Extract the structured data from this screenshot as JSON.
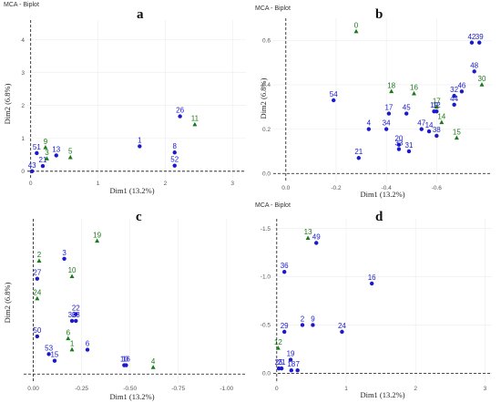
{
  "colors": {
    "blue": "#1a1acc",
    "green": "#1a7a1a"
  },
  "chart_data": [
    {
      "id": "a",
      "letter": "a",
      "type": "scatter",
      "title": "MCA - Biplot",
      "xlabel": "Dim1 (13.2%)",
      "ylabel": "Dim2 (6.8%)",
      "xlim": [
        -0.05,
        3.2
      ],
      "ylim": [
        -0.2,
        4.6
      ],
      "xticks": [
        {
          "v": 0,
          "t": "0"
        },
        {
          "v": 1,
          "t": "1"
        },
        {
          "v": 2,
          "t": "2"
        },
        {
          "v": 3,
          "t": "3"
        }
      ],
      "yticks": [
        {
          "v": 0,
          "t": "0"
        },
        {
          "v": 1,
          "t": "1"
        },
        {
          "v": 2,
          "t": "2"
        },
        {
          "v": 3,
          "t": "3"
        },
        {
          "v": 4,
          "t": "4"
        }
      ],
      "series": [
        {
          "color": "blue",
          "marker": "circle",
          "points": [
            {
              "x": 0.09,
              "y": 0.55,
              "label": "51"
            },
            {
              "x": 0.38,
              "y": 0.48,
              "label": "13"
            },
            {
              "x": 0.18,
              "y": 0.16,
              "label": "21"
            },
            {
              "x": 0.02,
              "y": 0.0,
              "label": "43"
            },
            {
              "x": 1.62,
              "y": 0.76,
              "label": "1"
            },
            {
              "x": 2.14,
              "y": 0.57,
              "label": "8"
            },
            {
              "x": 2.14,
              "y": 0.17,
              "label": "52"
            },
            {
              "x": 2.22,
              "y": 1.67,
              "label": "26"
            }
          ]
        },
        {
          "color": "green",
          "marker": "triangle",
          "points": [
            {
              "x": 0.22,
              "y": 0.72,
              "label": "9"
            },
            {
              "x": 0.24,
              "y": 0.38,
              "label": "3"
            },
            {
              "x": 0.59,
              "y": 0.42,
              "label": "5"
            },
            {
              "x": 2.44,
              "y": 1.42,
              "label": "11"
            }
          ]
        }
      ]
    },
    {
      "id": "b",
      "letter": "b",
      "type": "scatter",
      "title": "MCA - Biplot",
      "xlabel": "Dim1 (13.2%)",
      "ylabel": "Dim2 (6.8%)",
      "xlim": [
        0.05,
        -0.82
      ],
      "ylim": [
        -0.04,
        0.7
      ],
      "xticks": [
        {
          "v": 0,
          "t": "0.0"
        },
        {
          "v": -0.2,
          "t": "-0.2"
        },
        {
          "v": -0.4,
          "t": "-0.4"
        },
        {
          "v": -0.6,
          "t": "-0.6"
        }
      ],
      "yticks": [
        {
          "v": 0,
          "t": "0.0"
        },
        {
          "v": 0.2,
          "t": "0.2"
        },
        {
          "v": 0.4,
          "t": "0.4"
        },
        {
          "v": 0.6,
          "t": "0.6"
        }
      ],
      "series": [
        {
          "color": "blue",
          "marker": "circle",
          "points": [
            {
              "x": -0.19,
              "y": 0.33,
              "label": "54"
            },
            {
              "x": -0.29,
              "y": 0.07,
              "label": "21"
            },
            {
              "x": -0.33,
              "y": 0.2,
              "label": "4"
            },
            {
              "x": -0.4,
              "y": 0.2,
              "label": "34"
            },
            {
              "x": -0.41,
              "y": 0.27,
              "label": "17"
            },
            {
              "x": -0.48,
              "y": 0.27,
              "label": "45"
            },
            {
              "x": -0.45,
              "y": 0.13,
              "label": "20"
            },
            {
              "x": -0.45,
              "y": 0.11,
              "label": "33"
            },
            {
              "x": -0.49,
              "y": 0.1,
              "label": "31"
            },
            {
              "x": -0.54,
              "y": 0.2,
              "label": "47"
            },
            {
              "x": -0.57,
              "y": 0.19,
              "label": "14"
            },
            {
              "x": -0.59,
              "y": 0.28,
              "label": "19"
            },
            {
              "x": -0.6,
              "y": 0.28,
              "label": "12"
            },
            {
              "x": -0.6,
              "y": 0.17,
              "label": "38"
            },
            {
              "x": -0.67,
              "y": 0.35,
              "label": "32"
            },
            {
              "x": -0.67,
              "y": 0.31,
              "label": "44"
            },
            {
              "x": -0.7,
              "y": 0.37,
              "label": "46"
            },
            {
              "x": -0.74,
              "y": 0.59,
              "label": "42"
            },
            {
              "x": -0.77,
              "y": 0.59,
              "label": "39"
            },
            {
              "x": -0.75,
              "y": 0.46,
              "label": "48"
            }
          ]
        },
        {
          "color": "green",
          "marker": "triangle",
          "points": [
            {
              "x": -0.28,
              "y": 0.64,
              "label": "0"
            },
            {
              "x": -0.42,
              "y": 0.37,
              "label": "18"
            },
            {
              "x": -0.51,
              "y": 0.36,
              "label": "16"
            },
            {
              "x": -0.6,
              "y": 0.3,
              "label": "17"
            },
            {
              "x": -0.62,
              "y": 0.23,
              "label": "14"
            },
            {
              "x": -0.68,
              "y": 0.16,
              "label": "15"
            },
            {
              "x": -0.78,
              "y": 0.4,
              "label": "30"
            }
          ]
        }
      ]
    },
    {
      "id": "c",
      "letter": "c",
      "type": "scatter",
      "title": "",
      "xlabel": "Dim1 (13.2%)",
      "ylabel": "Dim2 (6.8%)",
      "xlim": [
        0.05,
        -1.1
      ],
      "ylim": [
        -0.04,
        0.7
      ],
      "xticks": [
        {
          "v": 0,
          "t": "0.00"
        },
        {
          "v": -0.25,
          "t": "-0.25"
        },
        {
          "v": -0.5,
          "t": "-0.50"
        },
        {
          "v": -0.75,
          "t": "-0.75"
        },
        {
          "v": -1.0,
          "t": "-1.00"
        }
      ],
      "yticks": [],
      "series": [
        {
          "color": "blue",
          "marker": "circle",
          "points": [
            {
              "x": -0.02,
              "y": 0.43,
              "label": "27"
            },
            {
              "x": -0.16,
              "y": 0.52,
              "label": "3"
            },
            {
              "x": -0.2,
              "y": 0.24,
              "label": "36"
            },
            {
              "x": -0.22,
              "y": 0.24,
              "label": "23"
            },
            {
              "x": -0.22,
              "y": 0.27,
              "label": "22"
            },
            {
              "x": -0.02,
              "y": 0.17,
              "label": "50"
            },
            {
              "x": -0.08,
              "y": 0.09,
              "label": "53"
            },
            {
              "x": -0.11,
              "y": 0.06,
              "label": "15"
            },
            {
              "x": -0.28,
              "y": 0.11,
              "label": "6"
            },
            {
              "x": -0.47,
              "y": 0.04,
              "label": "10"
            },
            {
              "x": -0.48,
              "y": 0.04,
              "label": "16"
            }
          ]
        },
        {
          "color": "green",
          "marker": "triangle",
          "points": [
            {
              "x": -0.03,
              "y": 0.51,
              "label": "2"
            },
            {
              "x": -0.02,
              "y": 0.34,
              "label": "24"
            },
            {
              "x": -0.2,
              "y": 0.44,
              "label": "10"
            },
            {
              "x": -0.18,
              "y": 0.16,
              "label": "6"
            },
            {
              "x": -0.2,
              "y": 0.11,
              "label": "1"
            },
            {
              "x": -0.33,
              "y": 0.6,
              "label": "19"
            },
            {
              "x": -0.62,
              "y": 0.03,
              "label": "4"
            }
          ]
        }
      ]
    },
    {
      "id": "d",
      "letter": "d",
      "type": "scatter",
      "title": "MCA - Biplot",
      "xlabel": "Dim1 (13.2%)",
      "ylabel": "",
      "xlim": [
        -0.05,
        3.1
      ],
      "ylim": [
        0.1,
        -1.6
      ],
      "xticks": [
        {
          "v": 0,
          "t": "0"
        },
        {
          "v": 1,
          "t": "1"
        },
        {
          "v": 2,
          "t": "2"
        },
        {
          "v": 3,
          "t": "3"
        }
      ],
      "yticks": [
        {
          "v": -1.5,
          "t": "-1.5"
        },
        {
          "v": -1.0,
          "t": "-1.0"
        },
        {
          "v": -0.5,
          "t": "-0.5"
        },
        {
          "v": 0,
          "t": "0.0"
        }
      ],
      "series": [
        {
          "color": "blue",
          "marker": "circle",
          "points": [
            {
              "x": 0.57,
              "y": -1.35,
              "label": "49"
            },
            {
              "x": 0.11,
              "y": -1.05,
              "label": "36"
            },
            {
              "x": 1.37,
              "y": -0.93,
              "label": "16"
            },
            {
              "x": 0.37,
              "y": -0.5,
              "label": "2"
            },
            {
              "x": 0.52,
              "y": -0.5,
              "label": "9"
            },
            {
              "x": 0.11,
              "y": -0.43,
              "label": "29"
            },
            {
              "x": 0.94,
              "y": -0.43,
              "label": "24"
            },
            {
              "x": 0.2,
              "y": -0.14,
              "label": "19"
            },
            {
              "x": 0.03,
              "y": -0.05,
              "label": "25"
            },
            {
              "x": 0.07,
              "y": -0.05,
              "label": "21"
            },
            {
              "x": 0.21,
              "y": -0.03,
              "label": "18"
            },
            {
              "x": 0.3,
              "y": -0.03,
              "label": "7"
            }
          ]
        },
        {
          "color": "green",
          "marker": "triangle",
          "points": [
            {
              "x": 0.45,
              "y": -1.4,
              "label": "13"
            },
            {
              "x": 0.02,
              "y": -0.26,
              "label": "12"
            }
          ]
        }
      ]
    }
  ]
}
